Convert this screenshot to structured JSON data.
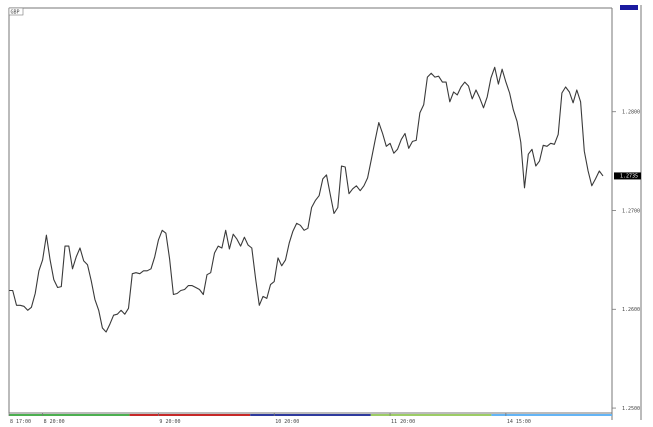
{
  "symbol_tag": "GBP",
  "chart_data": {
    "type": "line",
    "title": "",
    "xlabel": "",
    "ylabel": "",
    "ylim": [
      1.2495,
      1.2905
    ],
    "y_ticks": [
      {
        "value": 1.25,
        "label": "1.2500"
      },
      {
        "value": 1.26,
        "label": "1.2600"
      },
      {
        "value": 1.27,
        "label": "1.2700"
      },
      {
        "value": 1.28,
        "label": "1.2800"
      }
    ],
    "current_value": 1.2735,
    "current_label": "1.2735",
    "x_ticks": [
      {
        "index": 0,
        "label": "8 17:00"
      },
      {
        "index": 9,
        "label": "8 20:00"
      },
      {
        "index": 40,
        "label": "9 20:00"
      },
      {
        "index": 71,
        "label": "10 20:00"
      },
      {
        "index": 102,
        "label": "11 20:00"
      },
      {
        "index": 133,
        "label": "14 15:00"
      }
    ],
    "series": [
      {
        "values": [
          1.2619,
          1.2619,
          1.2604,
          1.2604,
          1.2603,
          1.2599,
          1.2602,
          1.2616,
          1.2639,
          1.265,
          1.2675,
          1.265,
          1.263,
          1.2622,
          1.2623,
          1.2664,
          1.2664,
          1.2641,
          1.2653,
          1.2662,
          1.2649,
          1.2645,
          1.2629,
          1.261,
          1.2599,
          1.2581,
          1.2577,
          1.2585,
          1.2594,
          1.2595,
          1.2599,
          1.2595,
          1.2601,
          1.2636,
          1.2637,
          1.2636,
          1.2639,
          1.2639,
          1.2641,
          1.2653,
          1.267,
          1.268,
          1.2677,
          1.2651,
          1.2615,
          1.2616,
          1.2619,
          1.262,
          1.2624,
          1.2624,
          1.2622,
          1.262,
          1.2615,
          1.2635,
          1.2637,
          1.2657,
          1.2664,
          1.2662,
          1.268,
          1.2661,
          1.2676,
          1.2671,
          1.2664,
          1.2673,
          1.2665,
          1.2662,
          1.2631,
          1.2604,
          1.2613,
          1.2611,
          1.2625,
          1.2628,
          1.2652,
          1.2644,
          1.265,
          1.2667,
          1.2679,
          1.2687,
          1.2685,
          1.268,
          1.2682,
          1.2703,
          1.271,
          1.2715,
          1.2732,
          1.2736,
          1.2716,
          1.2697,
          1.2703,
          1.2745,
          1.2744,
          1.2717,
          1.2722,
          1.2725,
          1.272,
          1.2725,
          1.2733,
          1.2752,
          1.2771,
          1.2789,
          1.2778,
          1.2765,
          1.2768,
          1.2758,
          1.2762,
          1.2772,
          1.2778,
          1.2763,
          1.277,
          1.2771,
          1.2799,
          1.2807,
          1.2835,
          1.2839,
          1.2835,
          1.2836,
          1.283,
          1.283,
          1.281,
          1.282,
          1.2817,
          1.2825,
          1.283,
          1.2826,
          1.2813,
          1.2822,
          1.2814,
          1.2804,
          1.2815,
          1.2834,
          1.2845,
          1.2828,
          1.2843,
          1.283,
          1.2819,
          1.2802,
          1.279,
          1.2769,
          1.2723,
          1.2757,
          1.2762,
          1.2745,
          1.275,
          1.2766,
          1.2765,
          1.2768,
          1.2767,
          1.2777,
          1.2819,
          1.2825,
          1.282,
          1.2809,
          1.2822,
          1.281,
          1.276,
          1.274,
          1.2725,
          1.2732,
          1.274,
          1.2735
        ]
      }
    ],
    "grid": false,
    "legend": "none"
  },
  "colors": {
    "line": "#3a3a3a",
    "axis": "#777777",
    "price_tag_bg": "#000000",
    "top_marker": "#1a1aa0",
    "bottom_bar": [
      "#4caf50",
      "#c62828",
      "#2e3a9e",
      "#9ccc65",
      "#64b5f6"
    ]
  }
}
